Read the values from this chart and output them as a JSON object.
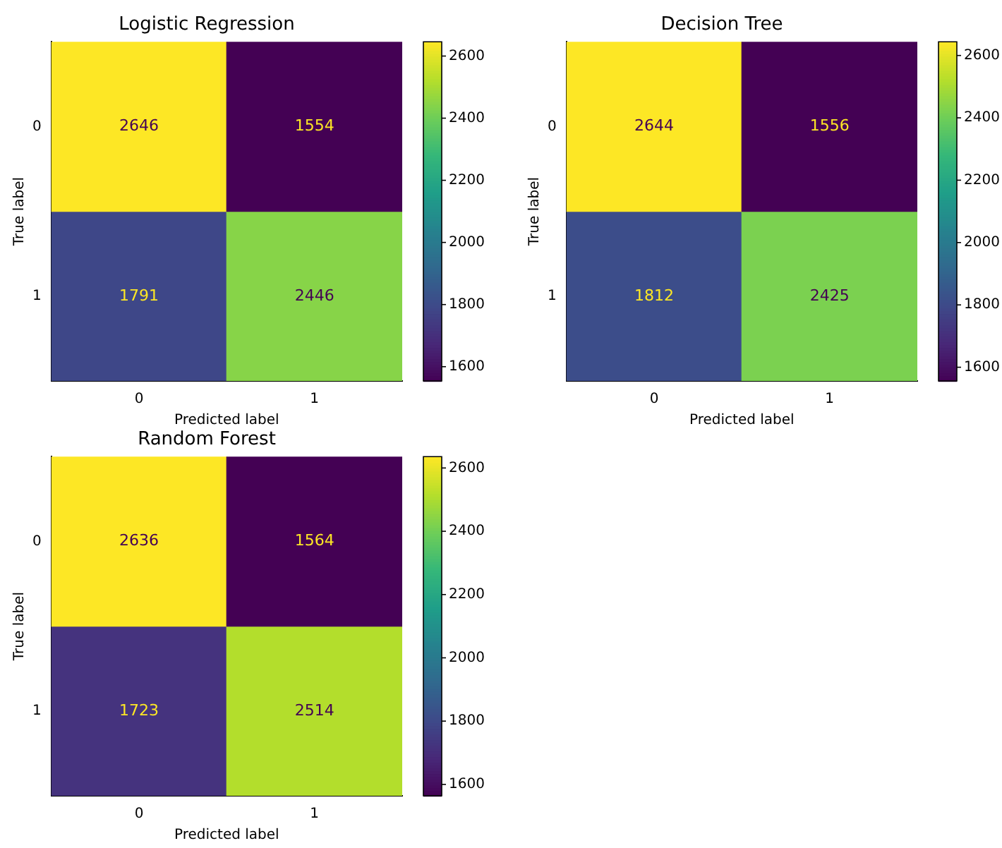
{
  "chart_data": [
    {
      "type": "heatmap",
      "title": "Logistic Regression",
      "categories": [
        "0",
        "1"
      ],
      "y_categories": [
        "0",
        "1"
      ],
      "cells": [
        [
          2646,
          1554
        ],
        [
          1791,
          2446
        ]
      ],
      "clim": [
        1554,
        2646
      ],
      "cticks": [
        1600,
        1800,
        2000,
        2200,
        2400,
        2600
      ],
      "xlabel": "Predicted label",
      "ylabel": "True label",
      "data_labels": true
    },
    {
      "type": "heatmap",
      "title": "Decision Tree",
      "categories": [
        "0",
        "1"
      ],
      "y_categories": [
        "0",
        "1"
      ],
      "cells": [
        [
          2644,
          1556
        ],
        [
          1812,
          2425
        ]
      ],
      "clim": [
        1556,
        2644
      ],
      "cticks": [
        1600,
        1800,
        2000,
        2200,
        2400,
        2600
      ],
      "xlabel": "Predicted label",
      "ylabel": "True label",
      "data_labels": true
    },
    {
      "type": "heatmap",
      "title": "Random Forest",
      "categories": [
        "0",
        "1"
      ],
      "y_categories": [
        "0",
        "1"
      ],
      "cells": [
        [
          2636,
          1564
        ],
        [
          1723,
          2514
        ]
      ],
      "clim": [
        1564,
        2636
      ],
      "cticks": [
        1600,
        1800,
        2000,
        2200,
        2400,
        2600
      ],
      "xlabel": "Predicted label",
      "ylabel": "True label",
      "data_labels": true
    }
  ]
}
